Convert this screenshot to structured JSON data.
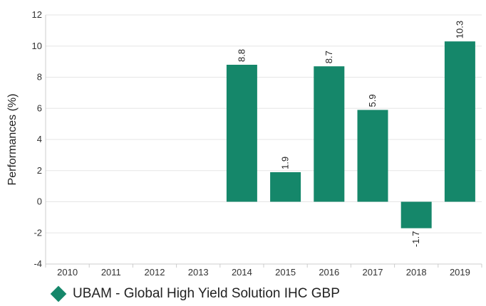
{
  "chart_data": {
    "type": "bar",
    "categories": [
      "2010",
      "2011",
      "2012",
      "2013",
      "2014",
      "2015",
      "2016",
      "2017",
      "2018",
      "2019"
    ],
    "series": [
      {
        "name": "UBAM - Global High Yield Solution IHC GBP",
        "values": [
          null,
          null,
          null,
          null,
          8.8,
          1.9,
          8.7,
          5.9,
          -1.7,
          10.3
        ],
        "labels": [
          "",
          "",
          "",
          "",
          "8.8",
          "1.9",
          "8.7",
          "5.9",
          "-1.7",
          "10.3"
        ]
      }
    ],
    "ylabel": "Performances (%)",
    "ylim": [
      -4,
      12
    ],
    "yticks": [
      "-4",
      "-2",
      "0",
      "2",
      "4",
      "6",
      "8",
      "10",
      "12"
    ],
    "grid": true,
    "legend_position": "bottom-left",
    "colors": {
      "bar": "#15876A",
      "grid": "#e6e6e6",
      "axis": "#cccccc"
    }
  }
}
